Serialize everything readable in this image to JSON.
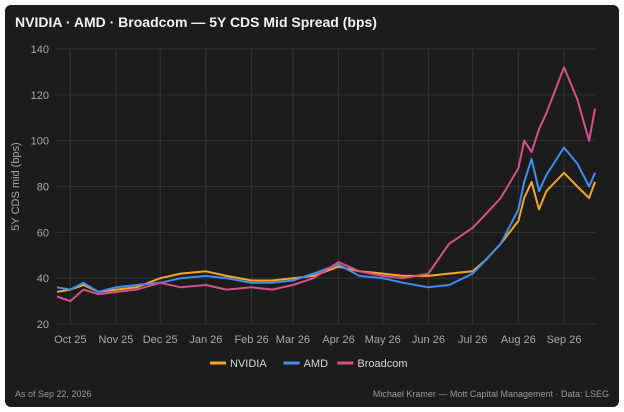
{
  "header": {
    "title": "NVIDIA · AMD · Broadcom — 5Y CDS Mid Spread (bps)"
  },
  "footer": {
    "as_of": "As of Sep 22, 2026",
    "source": "Michael Kramer — Mott Capital Management · Data: LSEG"
  },
  "colors": {
    "background": "#1c1c1c",
    "grid": "#333333",
    "NVIDIA": "#f5a52a",
    "AMD": "#3f8ef0",
    "Broadcom": "#d8508a"
  },
  "chart_data": {
    "type": "line",
    "title": "NVIDIA · AMD · Broadcom — 5Y CDS Mid Spread (bps)",
    "xlabel": "",
    "ylabel": "5Y CDS mid (bps)",
    "ylim": [
      20,
      140
    ],
    "yticks": [
      20,
      40,
      60,
      80,
      100,
      120,
      140
    ],
    "xlim": [
      "2025-09-22",
      "2026-09-22"
    ],
    "xticks": [
      {
        "date": "2025-10-01",
        "label": "Oct 25"
      },
      {
        "date": "2025-11-01",
        "label": "Nov 25"
      },
      {
        "date": "2025-12-01",
        "label": "Dec 25"
      },
      {
        "date": "2026-01-01",
        "label": "Jan 26"
      },
      {
        "date": "2026-02-01",
        "label": "Feb 26"
      },
      {
        "date": "2026-03-01",
        "label": "Mar 26"
      },
      {
        "date": "2026-04-01",
        "label": "Apr 26"
      },
      {
        "date": "2026-05-01",
        "label": "May 26"
      },
      {
        "date": "2026-06-01",
        "label": "Jun 26"
      },
      {
        "date": "2026-07-01",
        "label": "Jul 26"
      },
      {
        "date": "2026-08-01",
        "label": "Aug 26"
      },
      {
        "date": "2026-09-01",
        "label": "Sep 26"
      }
    ],
    "grid": true,
    "legend": "bottom-center",
    "series": [
      {
        "name": "NVIDIA",
        "x": [
          "2025-09-22",
          "2025-10-01",
          "2025-10-10",
          "2025-10-20",
          "2025-11-01",
          "2025-11-15",
          "2025-12-01",
          "2025-12-15",
          "2026-01-01",
          "2026-01-15",
          "2026-02-01",
          "2026-02-15",
          "2026-03-01",
          "2026-03-15",
          "2026-04-01",
          "2026-04-15",
          "2026-05-01",
          "2026-05-15",
          "2026-06-01",
          "2026-06-15",
          "2026-07-01",
          "2026-07-10",
          "2026-07-20",
          "2026-08-01",
          "2026-08-05",
          "2026-08-10",
          "2026-08-15",
          "2026-08-20",
          "2026-09-01",
          "2026-09-10",
          "2026-09-18",
          "2026-09-22"
        ],
        "values": [
          34,
          35,
          37,
          34,
          35,
          36,
          40,
          42,
          43,
          41,
          39,
          39,
          40,
          41,
          45,
          43,
          42,
          41,
          41,
          42,
          43,
          48,
          55,
          65,
          75,
          82,
          70,
          78,
          86,
          80,
          75,
          82
        ]
      },
      {
        "name": "AMD",
        "x": [
          "2025-09-22",
          "2025-10-01",
          "2025-10-10",
          "2025-10-20",
          "2025-11-01",
          "2025-11-15",
          "2025-12-01",
          "2025-12-15",
          "2026-01-01",
          "2026-01-15",
          "2026-02-01",
          "2026-02-15",
          "2026-03-01",
          "2026-03-15",
          "2026-04-01",
          "2026-04-15",
          "2026-05-01",
          "2026-05-15",
          "2026-06-01",
          "2026-06-15",
          "2026-07-01",
          "2026-07-10",
          "2026-07-20",
          "2026-08-01",
          "2026-08-05",
          "2026-08-10",
          "2026-08-15",
          "2026-08-20",
          "2026-09-01",
          "2026-09-10",
          "2026-09-18",
          "2026-09-22"
        ],
        "values": [
          36,
          35,
          38,
          34,
          36,
          37,
          38,
          40,
          41,
          40,
          38,
          38,
          39,
          42,
          46,
          41,
          40,
          38,
          36,
          37,
          42,
          48,
          55,
          70,
          82,
          92,
          78,
          85,
          97,
          90,
          80,
          86
        ]
      },
      {
        "name": "Broadcom",
        "x": [
          "2025-09-22",
          "2025-10-01",
          "2025-10-10",
          "2025-10-20",
          "2025-11-01",
          "2025-11-15",
          "2025-12-01",
          "2025-12-15",
          "2026-01-01",
          "2026-01-15",
          "2026-02-01",
          "2026-02-15",
          "2026-03-01",
          "2026-03-15",
          "2026-04-01",
          "2026-04-15",
          "2026-05-01",
          "2026-05-15",
          "2026-06-01",
          "2026-06-15",
          "2026-07-01",
          "2026-07-10",
          "2026-07-20",
          "2026-08-01",
          "2026-08-05",
          "2026-08-10",
          "2026-08-15",
          "2026-08-20",
          "2026-09-01",
          "2026-09-10",
          "2026-09-18",
          "2026-09-22"
        ],
        "values": [
          32,
          30,
          35,
          33,
          34,
          35,
          38,
          36,
          37,
          35,
          36,
          35,
          37,
          40,
          47,
          43,
          41,
          40,
          42,
          55,
          62,
          68,
          75,
          88,
          100,
          95,
          105,
          112,
          132,
          118,
          100,
          114
        ]
      }
    ]
  }
}
